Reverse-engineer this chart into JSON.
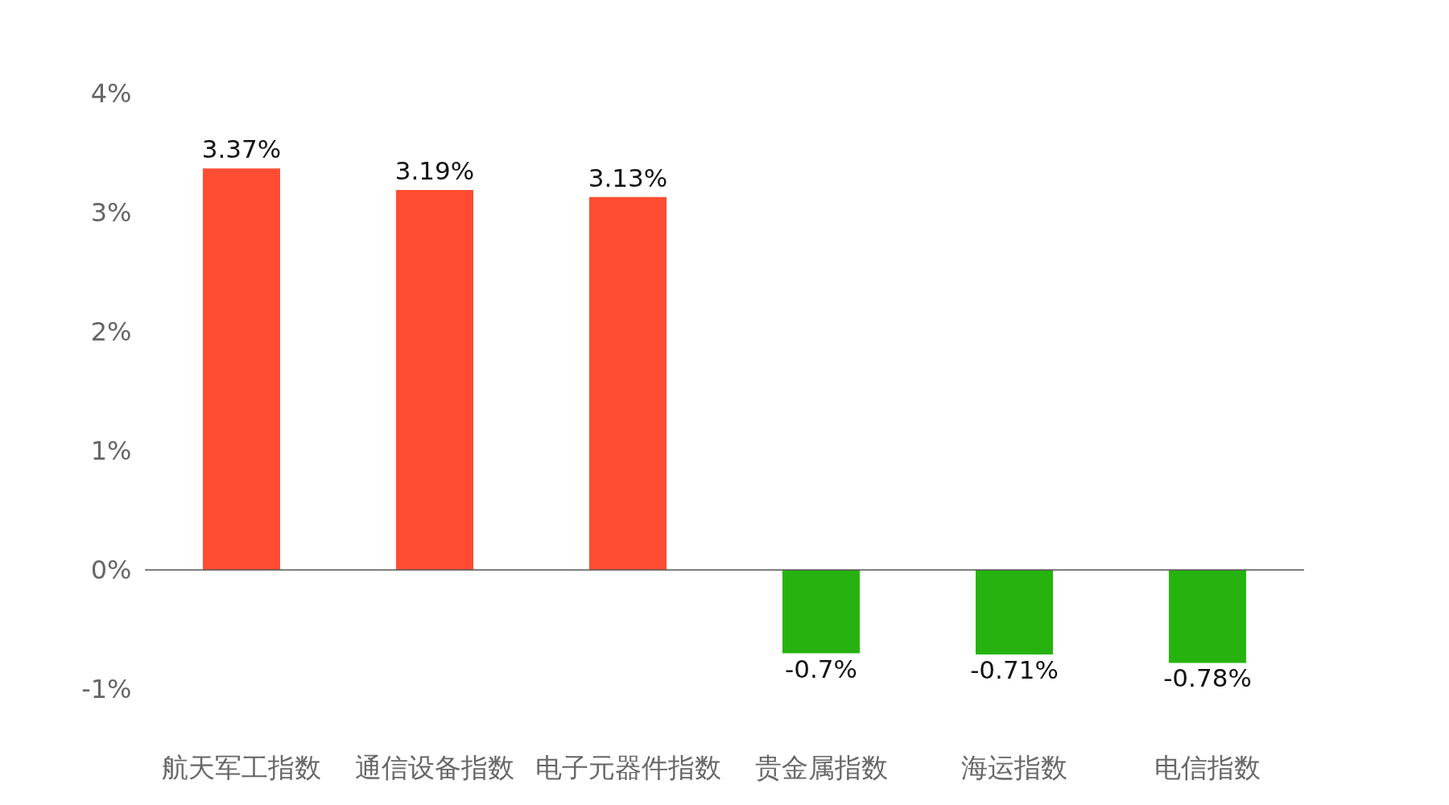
{
  "chart_data": {
    "type": "bar",
    "categories": [
      "航天军工指数",
      "通信设备指数",
      "电子元器件指数",
      "贵金属指数",
      "海运指数",
      "电信指数"
    ],
    "values": [
      3.37,
      3.19,
      3.13,
      -0.7,
      -0.71,
      -0.78
    ],
    "colors": [
      "#ff4d33",
      "#ff4d33",
      "#ff4d33",
      "#27b30f",
      "#27b30f",
      "#27b30f"
    ],
    "value_labels": [
      "3.37%",
      "3.19%",
      "3.13%",
      "-0.7%",
      "-0.71%",
      "-0.78%"
    ],
    "ylim": [
      -1,
      4
    ],
    "yticks": [
      {
        "value": -1,
        "label": "-1%"
      },
      {
        "value": 0,
        "label": "0%"
      },
      {
        "value": 1,
        "label": "1%"
      },
      {
        "value": 2,
        "label": "2%"
      },
      {
        "value": 3,
        "label": "3%"
      },
      {
        "value": 4,
        "label": "4%"
      }
    ],
    "ref_lines": [
      {
        "axis": "y",
        "value": 0,
        "color": "#555555"
      }
    ],
    "legend": false
  }
}
